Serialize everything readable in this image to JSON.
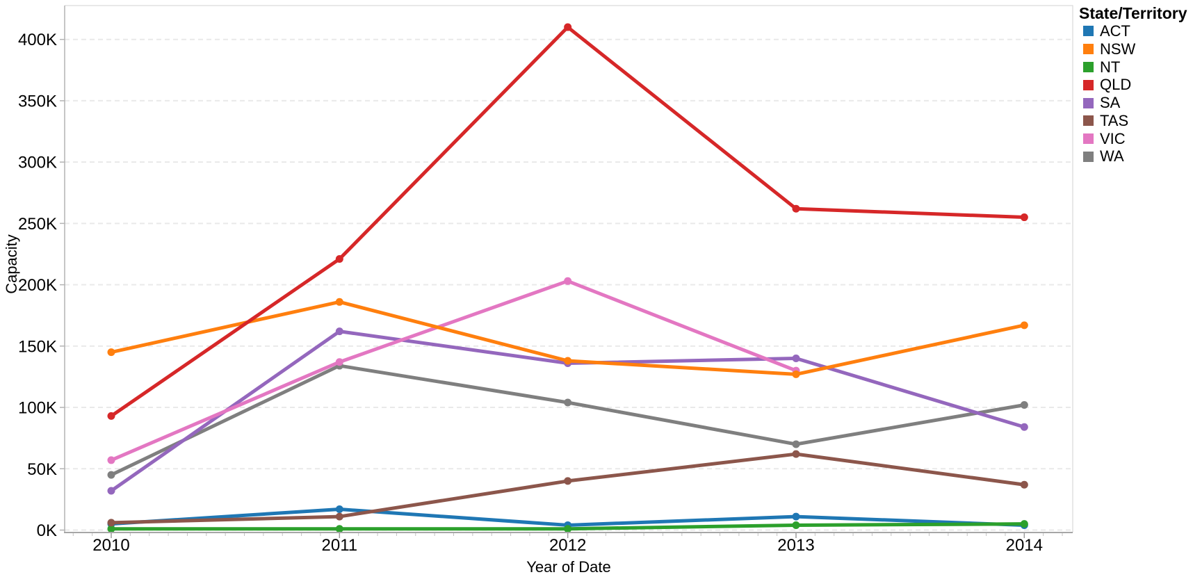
{
  "chart": {
    "y_axis_title": "Capacity",
    "x_axis_title": "Year of Date",
    "y_tick_labels": [
      "0K",
      "50K",
      "100K",
      "150K",
      "200K",
      "250K",
      "300K",
      "350K",
      "400K"
    ],
    "x_tick_labels": [
      "2010",
      "2011",
      "2012",
      "2013",
      "2014"
    ]
  },
  "legend": {
    "title": "State/Territory",
    "items": [
      {
        "label": "ACT",
        "color": "#1f77b4"
      },
      {
        "label": "NSW",
        "color": "#ff7f0e"
      },
      {
        "label": "NT",
        "color": "#2ca02c"
      },
      {
        "label": "QLD",
        "color": "#d62728"
      },
      {
        "label": "SA",
        "color": "#9467bd"
      },
      {
        "label": "TAS",
        "color": "#8c564b"
      },
      {
        "label": "VIC",
        "color": "#e377c2"
      },
      {
        "label": "WA",
        "color": "#7f7f7f"
      }
    ]
  },
  "chart_data": {
    "type": "line",
    "title": "",
    "xlabel": "Year of Date",
    "ylabel": "Capacity",
    "x": [
      2010,
      2011,
      2012,
      2013,
      2014
    ],
    "series": [
      {
        "name": "ACT",
        "color": "#1f77b4",
        "values": [
          5000,
          17000,
          4000,
          11000,
          4000
        ]
      },
      {
        "name": "NSW",
        "color": "#ff7f0e",
        "values": [
          145000,
          186000,
          138000,
          127000,
          167000
        ]
      },
      {
        "name": "NT",
        "color": "#2ca02c",
        "values": [
          1000,
          1000,
          1000,
          4000,
          5000
        ]
      },
      {
        "name": "QLD",
        "color": "#d62728",
        "values": [
          93000,
          221000,
          410000,
          262000,
          255000
        ]
      },
      {
        "name": "SA",
        "color": "#9467bd",
        "values": [
          32000,
          162000,
          136000,
          140000,
          84000
        ]
      },
      {
        "name": "TAS",
        "color": "#8c564b",
        "values": [
          6000,
          11000,
          40000,
          62000,
          37000
        ]
      },
      {
        "name": "VIC",
        "color": "#e377c2",
        "values": [
          57000,
          137000,
          203000,
          130000,
          null
        ]
      },
      {
        "name": "WA",
        "color": "#7f7f7f",
        "values": [
          45000,
          134000,
          104000,
          70000,
          102000
        ]
      }
    ],
    "ylim": [
      0,
      428000
    ],
    "y_tick_step": 50000,
    "grid": "horizontal-dashed",
    "legend_position": "right",
    "x_minor_ticks": "monthly",
    "draw_order": [
      "ACT",
      "NT",
      "TAS",
      "WA",
      "SA",
      "VIC",
      "NSW",
      "QLD"
    ]
  }
}
